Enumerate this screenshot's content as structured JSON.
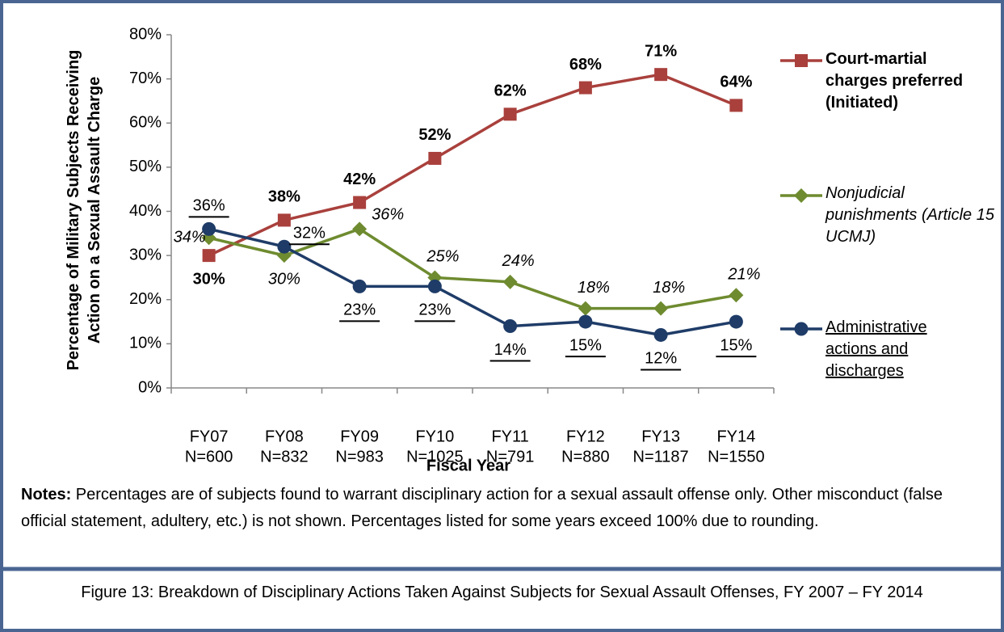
{
  "chart_data": {
    "type": "line",
    "categories": [
      "FY07",
      "FY08",
      "FY09",
      "FY10",
      "FY11",
      "FY12",
      "FY13",
      "FY14"
    ],
    "sample_sizes": [
      "N=600",
      "N=832",
      "N=983",
      "N=1025",
      "N=791",
      "N=880",
      "N=1187",
      "N=1550"
    ],
    "x_label": "Fiscal Year",
    "y_label": "Percentage of Military Subjects Receiving Action on a Sexual Assault Charge",
    "ylim": [
      0,
      80
    ],
    "yticks": [
      {
        "value": 0,
        "label": "0%"
      },
      {
        "value": 10,
        "label": "10%"
      },
      {
        "value": 20,
        "label": "20%"
      },
      {
        "value": 30,
        "label": "30%"
      },
      {
        "value": 40,
        "label": "40%"
      },
      {
        "value": 50,
        "label": "50%"
      },
      {
        "value": 60,
        "label": "60%"
      },
      {
        "value": 70,
        "label": "70%"
      },
      {
        "value": 80,
        "label": "80%"
      }
    ],
    "legend": "right",
    "series": [
      {
        "name": "Court-martial charges preferred (Initiated)",
        "color": "#a9403c",
        "marker": "square",
        "values": [
          30,
          38,
          42,
          52,
          62,
          68,
          71,
          64
        ],
        "value_labels": [
          "30%",
          "38%",
          "42%",
          "52%",
          "62%",
          "68%",
          "71%",
          "64%"
        ]
      },
      {
        "name": "Nonjudicial punishments (Article 15 UCMJ)",
        "color": "#6e8b2f",
        "marker": "diamond",
        "values": [
          34,
          30,
          36,
          25,
          24,
          18,
          18,
          21
        ],
        "value_labels": [
          "34%",
          "30%",
          "36%",
          "25%",
          "24%",
          "18%",
          "18%",
          "21%"
        ]
      },
      {
        "name": "Administrative actions and discharges",
        "color": "#1f3c68",
        "marker": "circle",
        "values": [
          36,
          32,
          23,
          23,
          14,
          15,
          12,
          15
        ],
        "value_labels": [
          "36%",
          "32%",
          "23%",
          "23%",
          "14%",
          "15%",
          "12%",
          "15%"
        ]
      }
    ]
  },
  "notes": {
    "label": "Notes:",
    "text": "Percentages are of subjects found to warrant disciplinary action for a sexual assault offense only.  Other misconduct (false official statement, adultery, etc.) is not shown.  Percentages listed for some years exceed 100% due to rounding."
  },
  "caption": "Figure 13: Breakdown of Disciplinary Actions Taken Against Subjects for Sexual Assault Offenses, FY 2007 – FY 2014"
}
